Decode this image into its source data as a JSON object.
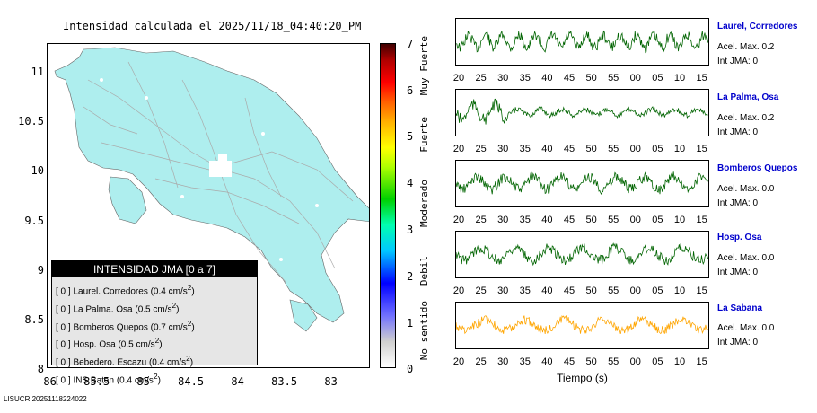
{
  "title": "Intensidad calculada el 2025/11/18_04:40:20_PM",
  "map": {
    "y_ticks": [
      "11",
      "10.5",
      "10",
      "9.5",
      "9",
      "8.5",
      "8"
    ],
    "x_ticks": [
      "-86",
      "-85.5",
      "-85",
      "-84.5",
      "-84",
      "-83.5",
      "-83"
    ],
    "land_color": "#aeeeee"
  },
  "legend": {
    "header": "INTENSIDAD JMA [0 a 7]",
    "items": [
      {
        "prefix": "[ 0 ]  Laurel. Corredores (0.4 cm/s",
        "sup": "2",
        ")": ")"
      },
      {
        "prefix": "[ 0 ]  La Palma. Osa (0.5 cm/s",
        "sup": "2",
        ")": ")"
      },
      {
        "prefix": "[ 0 ]  Bomberos Quepos (0.7 cm/s",
        "sup": "2",
        ")": ")"
      },
      {
        "prefix": "[ 0 ]  Hosp. Osa (0.5 cm/s",
        "sup": "2",
        ")": ")"
      },
      {
        "prefix": "[ 0 ]  Bebedero. Escazu (0.4 cm/s",
        "sup": "2",
        ")": ")"
      },
      {
        "prefix": "[ 0 ]  INS Batan (0.4 cm/s",
        "sup": "2",
        ")": ")"
      }
    ]
  },
  "colorbar": {
    "ticks": [
      "7",
      "6",
      "5",
      "4",
      "3",
      "2",
      "1",
      "0"
    ],
    "labels": [
      "Muy Fuerte",
      "Fuerte",
      "Moderado",
      "Debil",
      "No sentido"
    ]
  },
  "traces": [
    {
      "name": "Laurel, Corredores",
      "acel": "Acel. Max. 0.2",
      "jma": "Int JMA: 0",
      "color": "#006400"
    },
    {
      "name": "La Palma, Osa",
      "acel": "Acel. Max. 0.2",
      "jma": "Int JMA: 0",
      "color": "#006400"
    },
    {
      "name": "Bomberos Quepos",
      "acel": "Acel. Max. 0.0",
      "jma": "Int JMA: 0",
      "color": "#006400"
    },
    {
      "name": "Hosp. Osa",
      "acel": "Acel. Max. 0.0",
      "jma": "Int JMA: 0",
      "color": "#006400"
    },
    {
      "name": "La Sabana",
      "acel": "Acel. Max. 0.0",
      "jma": "Int JMA: 0",
      "color": "#ffa500"
    }
  ],
  "time_ticks": [
    "20",
    "25",
    "30",
    "35",
    "40",
    "45",
    "50",
    "55",
    "00",
    "05",
    "10",
    "15"
  ],
  "xlabel": "Tiempo (s)",
  "footer": "LISUCR 20251118224022"
}
